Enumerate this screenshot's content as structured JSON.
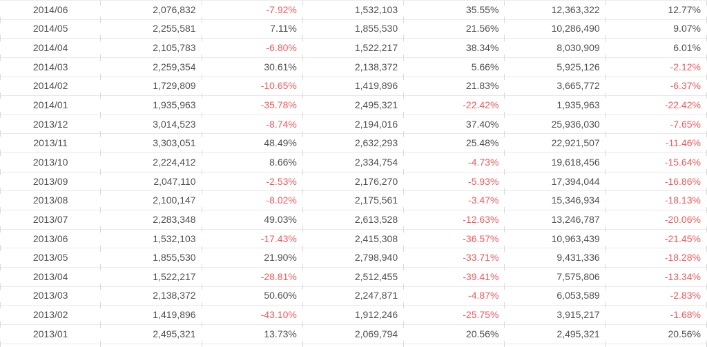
{
  "colors": {
    "text": "#4f4f4f",
    "negative": "#f05a5c",
    "row_border": "#e9e9e9",
    "tick": "#d9d9d9",
    "background": "#ffffff"
  },
  "table": {
    "rows": [
      [
        "2014/06",
        "2,076,832",
        "-7.92%",
        "1,532,103",
        "35.55%",
        "12,363,322",
        "12.77%"
      ],
      [
        "2014/05",
        "2,255,581",
        "7.11%",
        "1,855,530",
        "21.56%",
        "10,286,490",
        "9.07%"
      ],
      [
        "2014/04",
        "2,105,783",
        "-6.80%",
        "1,522,217",
        "38.34%",
        "8,030,909",
        "6.01%"
      ],
      [
        "2014/03",
        "2,259,354",
        "30.61%",
        "2,138,372",
        "5.66%",
        "5,925,126",
        "-2.12%"
      ],
      [
        "2014/02",
        "1,729,809",
        "-10.65%",
        "1,419,896",
        "21.83%",
        "3,665,772",
        "-6.37%"
      ],
      [
        "2014/01",
        "1,935,963",
        "-35.78%",
        "2,495,321",
        "-22.42%",
        "1,935,963",
        "-22.42%"
      ],
      [
        "2013/12",
        "3,014,523",
        "-8.74%",
        "2,194,016",
        "37.40%",
        "25,936,030",
        "-7.65%"
      ],
      [
        "2013/11",
        "3,303,051",
        "48.49%",
        "2,632,293",
        "25.48%",
        "22,921,507",
        "-11.46%"
      ],
      [
        "2013/10",
        "2,224,412",
        "8.66%",
        "2,334,754",
        "-4.73%",
        "19,618,456",
        "-15.64%"
      ],
      [
        "2013/09",
        "2,047,110",
        "-2.53%",
        "2,176,270",
        "-5.93%",
        "17,394,044",
        "-16.86%"
      ],
      [
        "2013/08",
        "2,100,147",
        "-8.02%",
        "2,175,561",
        "-3.47%",
        "15,346,934",
        "-18.13%"
      ],
      [
        "2013/07",
        "2,283,348",
        "49.03%",
        "2,613,528",
        "-12.63%",
        "13,246,787",
        "-20.06%"
      ],
      [
        "2013/06",
        "1,532,103",
        "-17.43%",
        "2,415,308",
        "-36.57%",
        "10,963,439",
        "-21.45%"
      ],
      [
        "2013/05",
        "1,855,530",
        "21.90%",
        "2,798,940",
        "-33.71%",
        "9,431,336",
        "-18.28%"
      ],
      [
        "2013/04",
        "1,522,217",
        "-28.81%",
        "2,512,455",
        "-39.41%",
        "7,575,806",
        "-13.34%"
      ],
      [
        "2013/03",
        "2,138,372",
        "50.60%",
        "2,247,871",
        "-4.87%",
        "6,053,589",
        "-2.83%"
      ],
      [
        "2013/02",
        "1,419,896",
        "-43.10%",
        "1,912,246",
        "-25.75%",
        "3,915,217",
        "-1.68%"
      ],
      [
        "2013/01",
        "2,495,321",
        "13.73%",
        "2,069,794",
        "20.56%",
        "2,495,321",
        "20.56%"
      ]
    ]
  }
}
